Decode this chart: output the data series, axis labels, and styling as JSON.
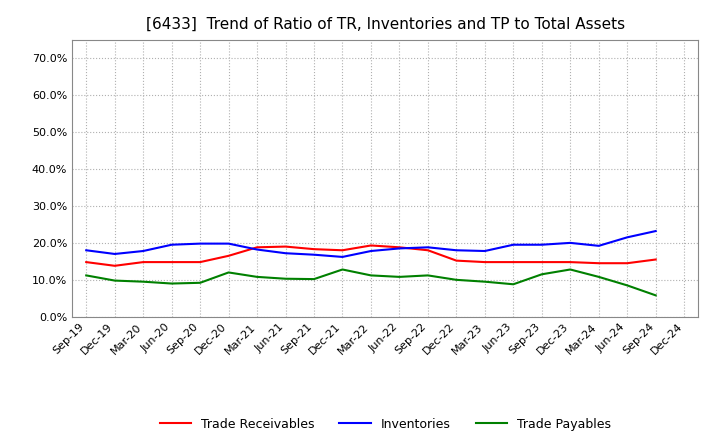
{
  "title": "[6433]  Trend of Ratio of TR, Inventories and TP to Total Assets",
  "x_labels": [
    "Sep-19",
    "Dec-19",
    "Mar-20",
    "Jun-20",
    "Sep-20",
    "Dec-20",
    "Mar-21",
    "Jun-21",
    "Sep-21",
    "Dec-21",
    "Mar-22",
    "Jun-22",
    "Sep-22",
    "Dec-22",
    "Mar-23",
    "Jun-23",
    "Sep-23",
    "Dec-23",
    "Mar-24",
    "Jun-24",
    "Sep-24",
    "Dec-24"
  ],
  "trade_receivables": [
    0.148,
    0.138,
    0.148,
    0.148,
    0.148,
    0.165,
    0.188,
    0.19,
    0.183,
    0.18,
    0.193,
    0.188,
    0.18,
    0.152,
    0.148,
    0.148,
    0.148,
    0.148,
    0.145,
    0.145,
    0.155,
    null
  ],
  "inventories": [
    0.18,
    0.17,
    0.178,
    0.195,
    0.198,
    0.198,
    0.182,
    0.172,
    0.168,
    0.162,
    0.178,
    0.185,
    0.188,
    0.18,
    0.178,
    0.195,
    0.195,
    0.2,
    0.192,
    0.215,
    0.232,
    null
  ],
  "trade_payables": [
    0.112,
    0.098,
    0.095,
    0.09,
    0.092,
    0.12,
    0.108,
    0.103,
    0.102,
    0.128,
    0.112,
    0.108,
    0.112,
    0.1,
    0.095,
    0.088,
    0.115,
    0.128,
    0.108,
    0.085,
    0.058,
    null
  ],
  "series_colors": {
    "trade_receivables": "#ff0000",
    "inventories": "#0000ff",
    "trade_payables": "#008000"
  },
  "ylim": [
    0.0,
    0.75
  ],
  "yticks": [
    0.0,
    0.1,
    0.2,
    0.3,
    0.4,
    0.5,
    0.6,
    0.7
  ],
  "background_color": "#ffffff",
  "grid_color": "#b0b0b0",
  "line_width": 1.5,
  "title_fontsize": 11,
  "tick_fontsize": 8,
  "legend_fontsize": 9
}
